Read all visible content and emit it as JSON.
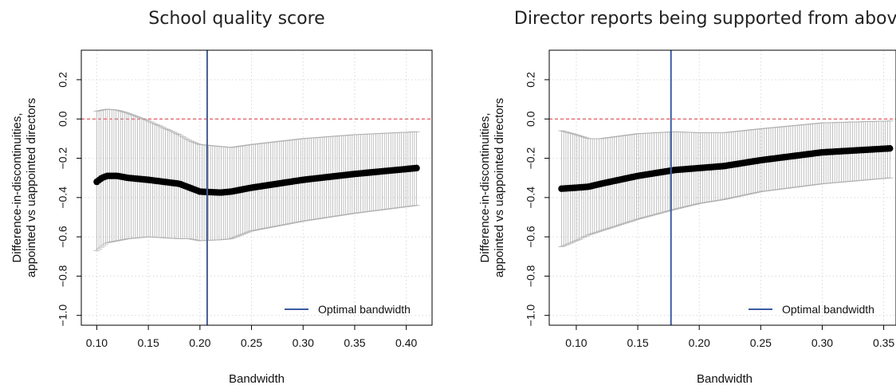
{
  "chart_data": [
    {
      "type": "scatter",
      "title": "School quality score",
      "xlabel": "Bandwidth",
      "ylabel_lines": [
        "Difference-in-discontinuities,",
        "appointed vs uappointed directors"
      ],
      "xlim": [
        0.085,
        0.425
      ],
      "ylim": [
        -1.05,
        0.35
      ],
      "xticks": [
        0.1,
        0.15,
        0.2,
        0.25,
        0.3,
        0.35,
        0.4
      ],
      "xtick_labels": [
        "0.10",
        "0.15",
        "0.20",
        "0.25",
        "0.30",
        "0.35",
        "0.40"
      ],
      "yticks": [
        -1.0,
        -0.8,
        -0.6,
        -0.4,
        -0.2,
        0.0,
        0.2
      ],
      "ytick_labels": [
        "−1.0",
        "−0.8",
        "−0.6",
        "−0.4",
        "−0.2",
        "0.0",
        "0.2"
      ],
      "grid": true,
      "reference_line_y": 0.0,
      "reference_line_color": "#e0323c",
      "optimal_bandwidth": 0.207,
      "optimal_color": "#3b5ba5",
      "legend_label": "Optimal bandwidth",
      "legend_position": "bottom-right",
      "point_color": "#000000",
      "ci_color": "#b0b0b0",
      "x_range": [
        0.1,
        0.41
      ],
      "n_points": 150,
      "knots": {
        "x": [
          0.1,
          0.105,
          0.11,
          0.12,
          0.13,
          0.15,
          0.18,
          0.19,
          0.2,
          0.22,
          0.23,
          0.25,
          0.3,
          0.35,
          0.41
        ],
        "est": [
          -0.32,
          -0.3,
          -0.29,
          -0.29,
          -0.3,
          -0.31,
          -0.33,
          -0.35,
          -0.37,
          -0.375,
          -0.37,
          -0.35,
          -0.31,
          -0.28,
          -0.25
        ],
        "upper": [
          0.04,
          0.045,
          0.05,
          0.045,
          0.03,
          -0.01,
          -0.08,
          -0.11,
          -0.13,
          -0.14,
          -0.145,
          -0.13,
          -0.1,
          -0.08,
          -0.065
        ],
        "lower": [
          -0.67,
          -0.65,
          -0.63,
          -0.62,
          -0.61,
          -0.6,
          -0.61,
          -0.61,
          -0.62,
          -0.615,
          -0.61,
          -0.57,
          -0.52,
          -0.48,
          -0.44
        ]
      }
    },
    {
      "type": "scatter",
      "title": "Director reports being supported from above",
      "xlabel": "Bandwidth",
      "ylabel_lines": [
        "Difference-in-discontinuities,",
        "appointed vs uappointed directors"
      ],
      "xlim": [
        0.078,
        0.36
      ],
      "ylim": [
        -1.05,
        0.35
      ],
      "xticks": [
        0.1,
        0.15,
        0.2,
        0.25,
        0.3,
        0.35
      ],
      "xtick_labels": [
        "0.10",
        "0.15",
        "0.20",
        "0.25",
        "0.30",
        "0.35"
      ],
      "yticks": [
        -1.0,
        -0.8,
        -0.6,
        -0.4,
        -0.2,
        0.0,
        0.2
      ],
      "ytick_labels": [
        "−1.0",
        "−0.8",
        "−0.6",
        "−0.4",
        "−0.2",
        "0.0",
        "0.2"
      ],
      "grid": true,
      "reference_line_y": 0.0,
      "reference_line_color": "#e0323c",
      "optimal_bandwidth": 0.177,
      "optimal_color": "#3b5ba5",
      "legend_label": "Optimal bandwidth",
      "legend_position": "bottom-right",
      "point_color": "#000000",
      "ci_color": "#b0b0b0",
      "x_range": [
        0.088,
        0.355
      ],
      "n_points": 150,
      "knots": {
        "x": [
          0.088,
          0.1,
          0.11,
          0.12,
          0.15,
          0.18,
          0.2,
          0.22,
          0.25,
          0.3,
          0.355
        ],
        "est": [
          -0.355,
          -0.35,
          -0.345,
          -0.33,
          -0.29,
          -0.26,
          -0.25,
          -0.24,
          -0.21,
          -0.17,
          -0.15
        ],
        "upper": [
          -0.06,
          -0.08,
          -0.1,
          -0.1,
          -0.075,
          -0.065,
          -0.07,
          -0.07,
          -0.05,
          -0.02,
          -0.01
        ],
        "lower": [
          -0.65,
          -0.62,
          -0.59,
          -0.57,
          -0.51,
          -0.46,
          -0.43,
          -0.41,
          -0.37,
          -0.33,
          -0.3
        ]
      }
    }
  ]
}
